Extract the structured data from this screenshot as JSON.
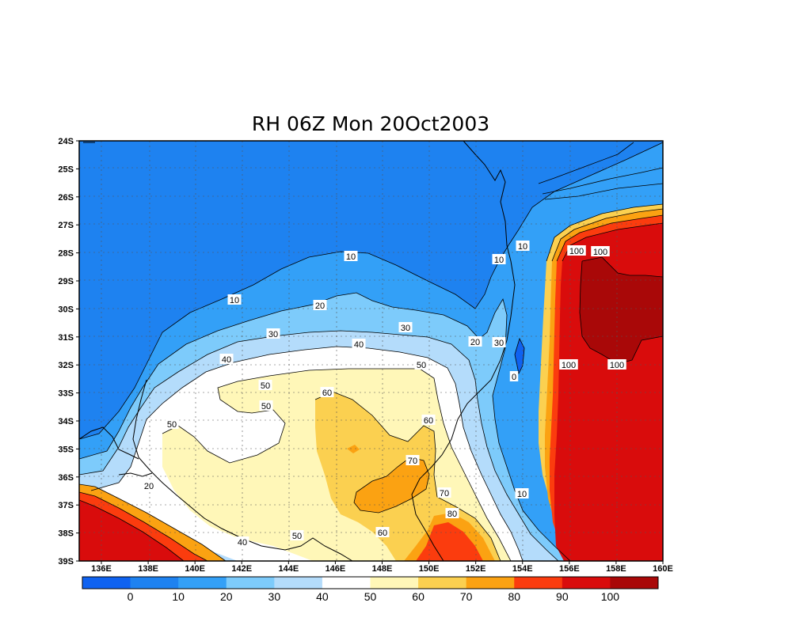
{
  "title": "RH 06Z Mon 20Oct2003",
  "map": {
    "lon_ticks": [
      "136E",
      "138E",
      "140E",
      "142E",
      "144E",
      "146E",
      "148E",
      "150E",
      "152E",
      "154E",
      "156E",
      "158E",
      "160E"
    ],
    "lat_ticks": [
      "24S",
      "25S",
      "26S",
      "27S",
      "28S",
      "29S",
      "30S",
      "31S",
      "32S",
      "33S",
      "34S",
      "35S",
      "36S",
      "37S",
      "38S",
      "39S"
    ],
    "gridlines": "dotted"
  },
  "contour_labels": [
    "10",
    "10",
    "10",
    "10",
    "20",
    "20",
    "20",
    "30",
    "30",
    "30",
    "40",
    "40",
    "40",
    "50",
    "50",
    "50",
    "50",
    "50",
    "60",
    "60",
    "60",
    "70",
    "70",
    "80",
    "100",
    "100",
    "100",
    "100",
    "0",
    "10"
  ],
  "colorbar": {
    "labels": [
      "0",
      "10",
      "20",
      "30",
      "40",
      "50",
      "60",
      "70",
      "80",
      "90",
      "100"
    ],
    "colors": [
      "#0f62f0",
      "#1e82f0",
      "#33a0f7",
      "#7dcbfb",
      "#b4dcfb",
      "#ffffff",
      "#fff7b8",
      "#fbd050",
      "#fba212",
      "#fb3c0e",
      "#d90c0c",
      "#a90808"
    ]
  },
  "field_colors": {
    "c0": "#0f62f0",
    "c10": "#1e82f0",
    "c20": "#33a0f7",
    "c30": "#7dcbfb",
    "c40": "#b4dcfb",
    "c50": "#ffffff",
    "c60": "#fff7b8",
    "c70": "#fbd050",
    "c80": "#fba212",
    "c90": "#fb3c0e",
    "c100": "#d90c0c",
    "c110": "#a90808"
  }
}
